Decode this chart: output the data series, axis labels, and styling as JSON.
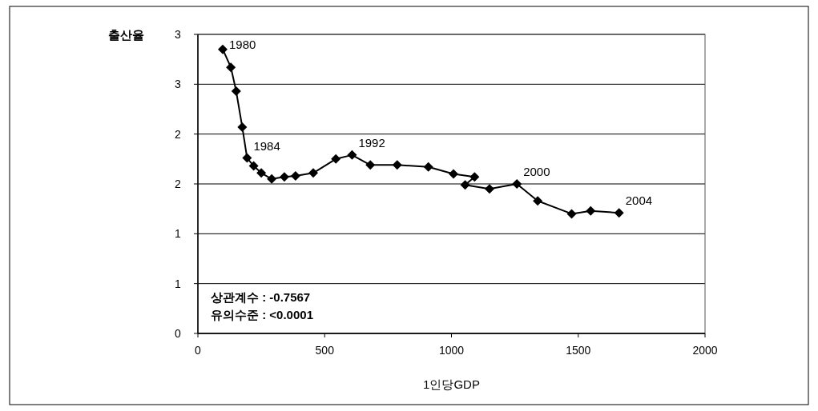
{
  "chart_data": {
    "type": "line",
    "xlabel": "1인당GDP",
    "ylabel": "출산율",
    "x": [
      98,
      130,
      151,
      175,
      194,
      220,
      250,
      291,
      341,
      385,
      455,
      544,
      608,
      680,
      786,
      909,
      1008,
      1091,
      1054,
      1150,
      1258,
      1340,
      1474,
      1549,
      1661
    ],
    "series": [
      {
        "color": "#000000",
        "values": [
          2.85,
          2.67,
          2.43,
          2.07,
          1.76,
          1.68,
          1.61,
          1.55,
          1.57,
          1.58,
          1.61,
          1.75,
          1.79,
          1.69,
          1.69,
          1.67,
          1.6,
          1.57,
          1.49,
          1.45,
          1.5,
          1.33,
          1.2,
          1.23,
          1.21
        ]
      }
    ],
    "xlim": [
      0,
      2000
    ],
    "ylim": [
      0,
      3
    ],
    "xticks": [
      0,
      500,
      1000,
      1500,
      2000
    ],
    "yticks": [
      0,
      {
        "value": 0.5,
        "label": "1"
      },
      1,
      {
        "value": 1.5,
        "label": "2"
      },
      2,
      {
        "value": 2.5,
        "label": "3"
      },
      3
    ],
    "grid": "y",
    "marker": "diamond",
    "line_style": "solid",
    "annotations": [
      {
        "text": "1980",
        "x": 98,
        "y": 2.85
      },
      {
        "text": "1984",
        "x": 194,
        "y": 1.76
      },
      {
        "text": "1992",
        "x": 608,
        "y": 1.79
      },
      {
        "text": "2000",
        "x": 1258,
        "y": 1.5
      },
      {
        "text": "2004",
        "x": 1661,
        "y": 1.21
      },
      "상관계수 : -0.7567",
      "유의수준 : <0.0001"
    ]
  }
}
